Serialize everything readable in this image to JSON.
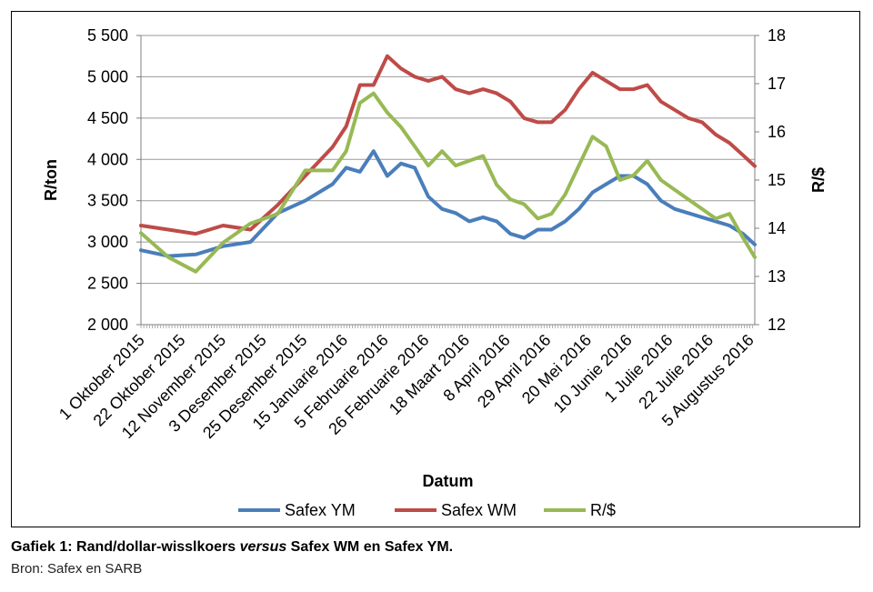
{
  "chart_data": {
    "type": "line",
    "xlabel": "Datum",
    "ylabel_left": "R/ton",
    "ylabel_right": "R/$",
    "ylim_left": [
      2000,
      5500
    ],
    "ylim_right": [
      12,
      18
    ],
    "yticks_left": [
      "2 000",
      "2 500",
      "3 000",
      "3 500",
      "4 000",
      "4 500",
      "5 000",
      "5 500"
    ],
    "yticks_right": [
      "12",
      "13",
      "14",
      "15",
      "16",
      "17",
      "18"
    ],
    "x_tick_labels": [
      "1 Oktober 2015",
      "22 Oktober 2015",
      "12 November 2015",
      "3 Desember 2015",
      "25 Desember 2015",
      "15 Januarie 2016",
      "5 Februarie 2016",
      "26 Februarie 2016",
      "18 Maart 2016",
      "8 April 2016",
      "29 April 2016",
      "20 Mei 2016",
      "10 Junie 2016",
      "1 Julie 2016",
      "22 Julie 2016",
      "5 Augustus 2016"
    ],
    "x": [
      "2015-10-01",
      "2015-10-15",
      "2015-10-29",
      "2015-11-12",
      "2015-11-26",
      "2015-12-10",
      "2015-12-24",
      "2016-01-07",
      "2016-01-14",
      "2016-01-21",
      "2016-01-28",
      "2016-02-04",
      "2016-02-11",
      "2016-02-18",
      "2016-02-25",
      "2016-03-03",
      "2016-03-10",
      "2016-03-17",
      "2016-03-24",
      "2016-03-31",
      "2016-04-07",
      "2016-04-14",
      "2016-04-21",
      "2016-04-28",
      "2016-05-05",
      "2016-05-12",
      "2016-05-19",
      "2016-05-26",
      "2016-06-02",
      "2016-06-09",
      "2016-06-16",
      "2016-06-23",
      "2016-06-30",
      "2016-07-07",
      "2016-07-14",
      "2016-07-21",
      "2016-07-28",
      "2016-08-04",
      "2016-08-10"
    ],
    "series": [
      {
        "name": "Safex YM",
        "axis": "left",
        "color": "#4a7ebb",
        "values": [
          2900,
          2830,
          2850,
          2950,
          3000,
          3350,
          3500,
          3700,
          3900,
          3850,
          4100,
          3800,
          3950,
          3900,
          3550,
          3400,
          3350,
          3250,
          3300,
          3250,
          3100,
          3050,
          3150,
          3150,
          3250,
          3400,
          3600,
          3700,
          3800,
          3800,
          3700,
          3500,
          3400,
          3350,
          3300,
          3250,
          3200,
          3100,
          2970
        ]
      },
      {
        "name": "Safex WM",
        "axis": "left",
        "color": "#be4b48",
        "values": [
          3200,
          3150,
          3100,
          3200,
          3150,
          3450,
          3800,
          4150,
          4400,
          4900,
          4900,
          5250,
          5100,
          5000,
          4950,
          5000,
          4850,
          4800,
          4850,
          4800,
          4700,
          4500,
          4450,
          4450,
          4600,
          4850,
          5050,
          4950,
          4850,
          4850,
          4900,
          4700,
          4600,
          4500,
          4450,
          4300,
          4200,
          4050,
          3920
        ]
      },
      {
        "name": "R/$",
        "axis": "right",
        "color": "#98b954",
        "values": [
          13.9,
          13.4,
          13.1,
          13.7,
          14.1,
          14.3,
          15.2,
          15.2,
          15.6,
          16.6,
          16.8,
          16.4,
          16.1,
          15.7,
          15.3,
          15.6,
          15.3,
          15.4,
          15.5,
          14.9,
          14.6,
          14.5,
          14.2,
          14.3,
          14.7,
          15.3,
          15.9,
          15.7,
          15.0,
          15.1,
          15.4,
          15.0,
          14.8,
          14.6,
          14.4,
          14.2,
          14.3,
          13.8,
          13.4
        ]
      }
    ],
    "legend_position": "bottom",
    "grid": "horizontal"
  },
  "caption": {
    "prefix": "Gafiek 1: Rand/dollar-wisslkoers ",
    "italic": "versus",
    "suffix": " Safex WM en Safex YM."
  },
  "source": "Bron: Safex en SARB"
}
